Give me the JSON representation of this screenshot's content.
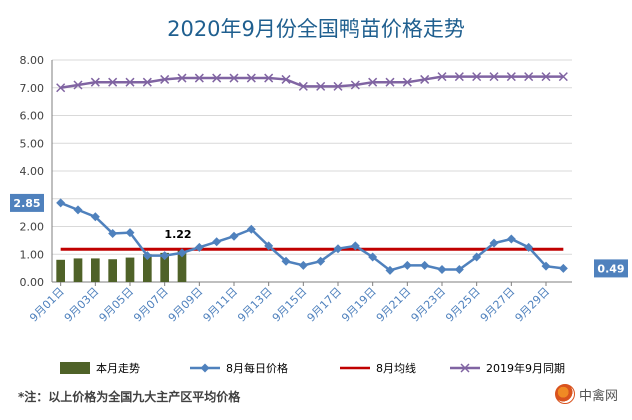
{
  "chart_data": {
    "type": "bar+line",
    "title": "2020年9月份全国鸭苗价格走势",
    "ylim": [
      0,
      8
    ],
    "yticks": [
      "0.00",
      "1.00",
      "2.00",
      "3.00",
      "4.00",
      "5.00",
      "6.00",
      "7.00",
      "8.00"
    ],
    "x_tick_labels": [
      "9月01日",
      "9月03日",
      "9月05日",
      "9月07日",
      "9月09日",
      "9月11日",
      "9月13日",
      "9月15日",
      "9月17日",
      "9月19日",
      "9月21日",
      "9月23日",
      "9月25日",
      "9月27日",
      "9月29日"
    ],
    "days": [
      1,
      2,
      3,
      4,
      5,
      6,
      7,
      8,
      9,
      10,
      11,
      12,
      13,
      14,
      15,
      16,
      17,
      18,
      19,
      20,
      21,
      22,
      23,
      24,
      25,
      26,
      27,
      28,
      29,
      30
    ],
    "series": [
      {
        "name": "本月走势",
        "kind": "bar",
        "color": "#4f6228",
        "values": [
          0.8,
          0.85,
          0.85,
          0.82,
          0.88,
          1.0,
          1.05,
          1.22
        ]
      },
      {
        "name": "8月每日价格",
        "kind": "line",
        "marker": "diamond",
        "color": "#4f81bd",
        "values": [
          2.85,
          2.6,
          2.35,
          1.75,
          1.78,
          0.95,
          0.95,
          1.05,
          1.25,
          1.45,
          1.65,
          1.9,
          1.3,
          0.75,
          0.6,
          0.75,
          1.2,
          1.3,
          0.9,
          0.42,
          0.6,
          0.6,
          0.45,
          0.45,
          0.9,
          1.4,
          1.55,
          1.25,
          0.57,
          0.49
        ]
      },
      {
        "name": "8月均线",
        "kind": "hline",
        "color": "#c00000",
        "value": 1.18
      },
      {
        "name": "2019年9月同期",
        "kind": "line",
        "marker": "x",
        "color": "#8064a2",
        "values": [
          7.0,
          7.1,
          7.2,
          7.2,
          7.2,
          7.2,
          7.3,
          7.35,
          7.35,
          7.35,
          7.35,
          7.35,
          7.35,
          7.3,
          7.05,
          7.05,
          7.05,
          7.1,
          7.2,
          7.2,
          7.2,
          7.3,
          7.4,
          7.4,
          7.4,
          7.4,
          7.4,
          7.4,
          7.4,
          7.4
        ]
      }
    ],
    "data_labels": {
      "first": "2.85",
      "bar_last": "1.22",
      "last": "0.49"
    },
    "legend_placement": "bottom",
    "grid": true
  },
  "footnote": "*注：以上价格为全国九大主产区平均价格",
  "logo_text": "中禽网",
  "colors": {
    "title": "#1f5f8f",
    "grid": "#d9d9d9",
    "axis": "#7f7f7f",
    "tick_label": "#404040",
    "label_box": "#4f81bd"
  }
}
